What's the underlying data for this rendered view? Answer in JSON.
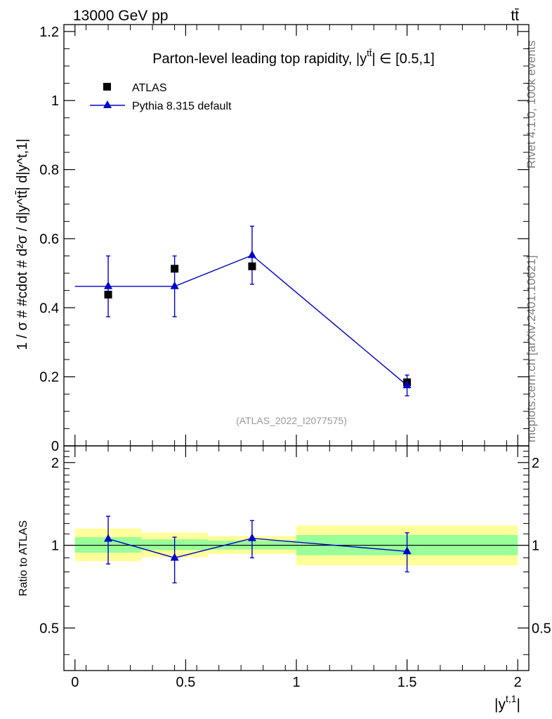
{
  "header": {
    "energy_label": "13000 GeV pp",
    "process_label": "tt̄"
  },
  "side_labels": {
    "rivet": "Rivet 4.1.0,  100k events",
    "mcplots": "mcplots.cern.ch [arXiv:2401.10621]"
  },
  "colors": {
    "mc_line": "#0000cc",
    "data_marker": "#000000",
    "band_inner": "#99ff99",
    "band_outer": "#ffff99",
    "watermark": "#999999",
    "side_text": "#808080"
  },
  "chart_data": [
    {
      "type": "scatter",
      "panel": "main",
      "title": "Parton-level leading top rapidity, |y",
      "title_sup": "tt̄",
      "title_tail": "| ∈ [0.5,1]",
      "ylabel": "1 / σ # #cdot # d²σ / d|y^tt̄| d|y^t,1|",
      "xlim": [
        -0.05,
        2.05
      ],
      "ylim": [
        0,
        1.22
      ],
      "yticks": [
        0,
        0.2,
        0.4,
        0.6,
        0.8,
        1,
        1.2
      ],
      "ytick_labels": [
        "0",
        "0.2",
        "0.4",
        "0.6",
        "0.8",
        "1",
        "1.2"
      ],
      "watermark": "(ATLAS_2022_I2077575)",
      "legend": [
        {
          "label": "ATLAS",
          "marker": "square"
        },
        {
          "label": "Pythia 8.315 default",
          "marker": "triangle"
        }
      ],
      "series": [
        {
          "name": "ATLAS",
          "x": [
            0.15,
            0.45,
            0.8,
            1.5
          ],
          "xerr_low": [
            0.15,
            0.15,
            0.2,
            0.5
          ],
          "xerr_high": [
            0.15,
            0.15,
            0.2,
            0.5
          ],
          "y": [
            0.438,
            0.513,
            0.52,
            0.184
          ]
        },
        {
          "name": "Pythia 8.315 default",
          "x": [
            0.15,
            0.45,
            0.8,
            1.5
          ],
          "xerr_low": [
            0.15,
            0.15,
            0.2,
            0.5
          ],
          "xerr_high": [
            0.15,
            0.15,
            0.2,
            0.5
          ],
          "y": [
            0.462,
            0.462,
            0.552,
            0.175
          ],
          "yerr": [
            0.088,
            0.088,
            0.084,
            0.03
          ]
        }
      ]
    },
    {
      "type": "scatter",
      "panel": "ratio",
      "ylabel": "Ratio to ATLAS",
      "xlabel": "|y^t,1|",
      "xlim": [
        -0.05,
        2.05
      ],
      "ylim": [
        0.35,
        2.3
      ],
      "yscale": "log",
      "yticks": [
        0.5,
        1,
        2
      ],
      "ytick_labels": [
        "0.5",
        "1",
        "2"
      ],
      "xticks": [
        0,
        0.5,
        1,
        1.5,
        2
      ],
      "xtick_labels": [
        "0",
        "0.5",
        "1",
        "1.5",
        "2"
      ],
      "bands": [
        {
          "x_low": 0.0,
          "x_high": 0.3,
          "inner": [
            0.94,
            1.07
          ],
          "outer": [
            0.875,
            1.15
          ]
        },
        {
          "x_low": 0.3,
          "x_high": 0.6,
          "inner": [
            0.96,
            1.05
          ],
          "outer": [
            0.905,
            1.11
          ]
        },
        {
          "x_low": 0.6,
          "x_high": 1.0,
          "inner": [
            0.965,
            1.04
          ],
          "outer": [
            0.93,
            1.08
          ]
        },
        {
          "x_low": 1.0,
          "x_high": 2.0,
          "inner": [
            0.92,
            1.09
          ],
          "outer": [
            0.845,
            1.18
          ]
        }
      ],
      "series": [
        {
          "name": "Pythia 8.315 default",
          "x": [
            0.15,
            0.45,
            0.8,
            1.5
          ],
          "y": [
            1.055,
            0.9,
            1.06,
            0.95
          ],
          "yerr_low": [
            0.2,
            0.17,
            0.16,
            0.15
          ],
          "yerr_high": [
            0.22,
            0.17,
            0.17,
            0.16
          ]
        }
      ]
    }
  ]
}
